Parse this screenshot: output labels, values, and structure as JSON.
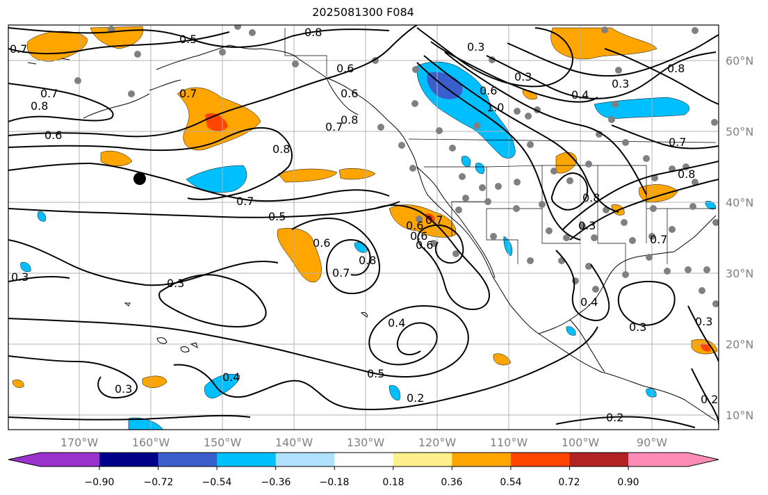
{
  "title": "2025081300 F084",
  "lon_labels": [
    "170°W",
    "160°W",
    "150°W",
    "140°W",
    "130°W",
    "120°W",
    "110°W",
    "100°W",
    "90°W"
  ],
  "lat_labels": [
    "60°N",
    "50°N",
    "40°N",
    "30°N",
    "20°N",
    "10°N"
  ],
  "contour_labels": [
    "0.8",
    "0.5",
    "0.7",
    "0.6",
    "0.3",
    "0.7",
    "0.7",
    "0.8",
    "0.6",
    "0.6",
    "0.6",
    "0.8",
    "0.7",
    "0.7",
    "0.5",
    "0.6",
    "0.7",
    "0.8",
    "0.6",
    "0.3",
    "0.3",
    "0.4",
    "0.5",
    "0.2",
    "0.3",
    "0.4",
    "0.3",
    "0.6",
    "1.0",
    "0.8",
    "0.8",
    "0.4",
    "0.7",
    "0.8",
    "0.7",
    "0.3",
    "0.3",
    "0.2",
    "0.2",
    "0.3",
    "0.4",
    "0.8",
    "0.7",
    "0.6",
    "0.3"
  ],
  "colorbar": {
    "tick_labels": [
      "−0.90",
      "−0.72",
      "−0.54",
      "−0.36",
      "−0.18",
      "0.18",
      "0.36",
      "0.54",
      "0.72",
      "0.90"
    ],
    "colors": [
      "#9a32cd",
      "#00008b",
      "#3a5fcd",
      "#00bfff",
      "#b0e2ff",
      "#ffffff",
      "#fff08c",
      "#ffa500",
      "#ff4500",
      "#b22222",
      "#ff8cb4"
    ]
  }
}
